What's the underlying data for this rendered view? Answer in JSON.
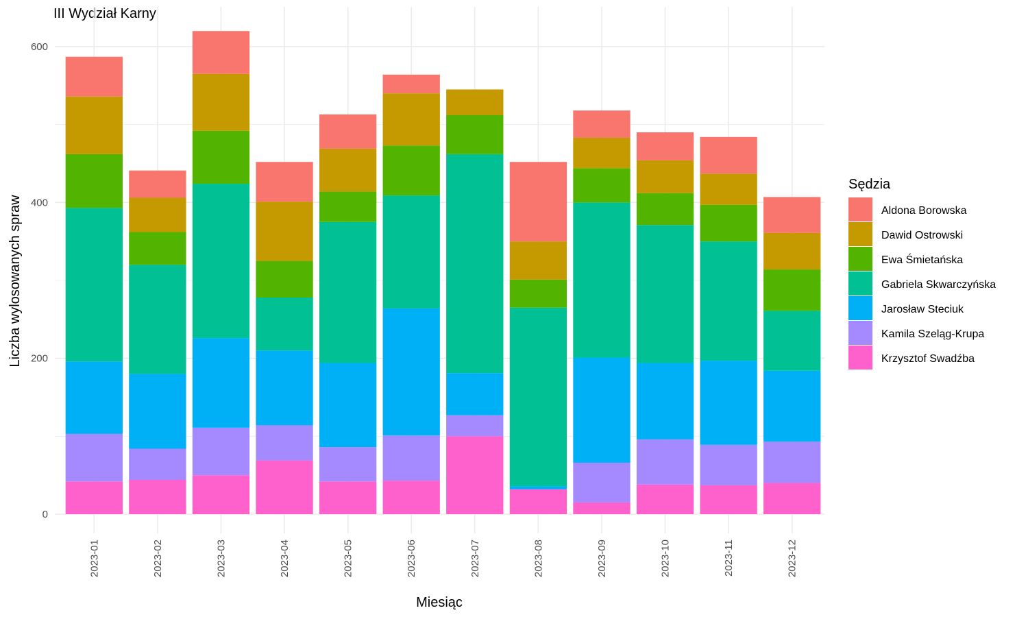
{
  "chart_data": {
    "type": "bar",
    "stacked": true,
    "title": "III Wydział Karny",
    "xlabel": "Miesiąc",
    "ylabel": "Liczba wylosowanych spraw",
    "ylim": [
      0,
      625
    ],
    "yticks": [
      0,
      200,
      400,
      600
    ],
    "grid": true,
    "legend": {
      "title": "Sędzia",
      "position": "right"
    },
    "categories": [
      "2023-01",
      "2023-02",
      "2023-03",
      "2023-04",
      "2023-05",
      "2023-06",
      "2023-07",
      "2023-08",
      "2023-09",
      "2023-10",
      "2023-11",
      "2023-12"
    ],
    "series": [
      {
        "name": "Krzysztof Swadźba",
        "color": "#FF61CC",
        "values": [
          42,
          44,
          50,
          69,
          42,
          43,
          100,
          32,
          15,
          38,
          37,
          40
        ]
      },
      {
        "name": "Kamila Szeląg-Krupa",
        "color": "#A58AFF",
        "values": [
          61,
          40,
          61,
          45,
          44,
          58,
          27,
          0,
          51,
          58,
          52,
          53
        ]
      },
      {
        "name": "Jarosław Steciuk",
        "color": "#00B0F6",
        "values": [
          93,
          96,
          115,
          96,
          108,
          163,
          54,
          4,
          135,
          98,
          108,
          91
        ]
      },
      {
        "name": "Gabriela Skwarczyńska",
        "color": "#00C094",
        "values": [
          197,
          140,
          198,
          68,
          181,
          145,
          281,
          229,
          199,
          177,
          153,
          77
        ]
      },
      {
        "name": "Ewa Śmietańska",
        "color": "#53B400",
        "values": [
          69,
          42,
          68,
          47,
          39,
          64,
          50,
          36,
          44,
          41,
          47,
          53
        ]
      },
      {
        "name": "Dawid Ostrowski",
        "color": "#C49A00",
        "values": [
          74,
          44,
          73,
          76,
          55,
          67,
          33,
          49,
          39,
          42,
          40,
          47
        ]
      },
      {
        "name": "Aldona Borowska",
        "color": "#F8766D",
        "values": [
          51,
          35,
          55,
          51,
          44,
          24,
          0,
          102,
          35,
          36,
          47,
          46
        ]
      }
    ],
    "legend_order": [
      "Aldona Borowska",
      "Dawid Ostrowski",
      "Ewa Śmietańska",
      "Gabriela Skwarczyńska",
      "Jarosław Steciuk",
      "Kamila Szeląg-Krupa",
      "Krzysztof Swadźba"
    ]
  }
}
